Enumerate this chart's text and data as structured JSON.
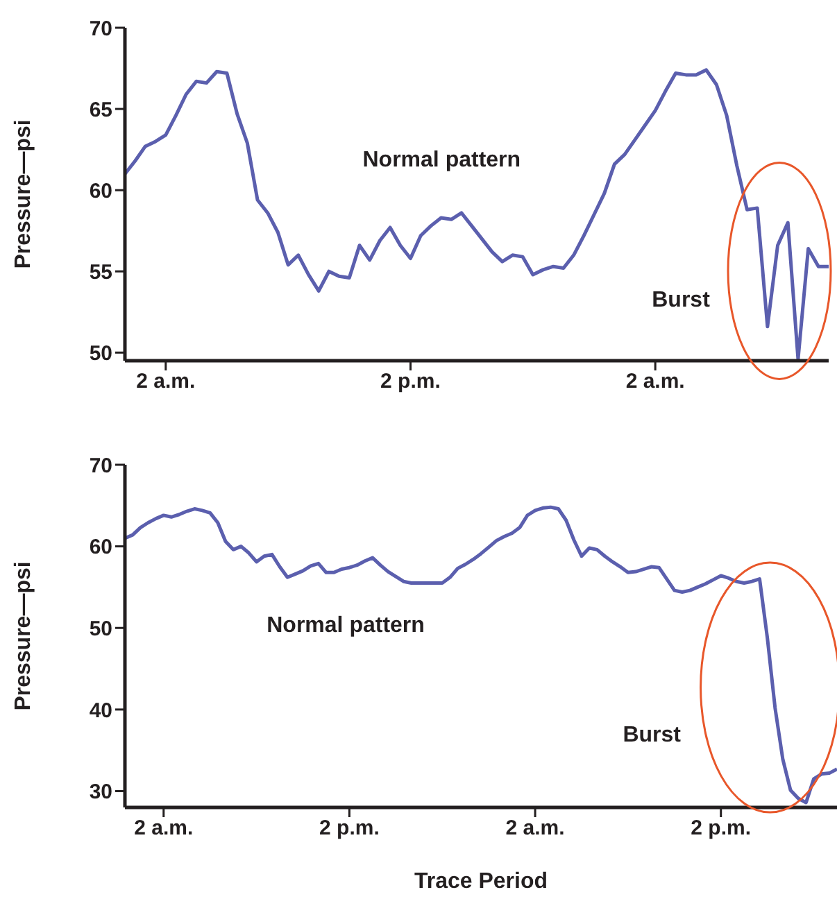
{
  "chart_data": [
    {
      "type": "line",
      "ylabel": "Pressure—psi",
      "ylim": [
        49.5,
        70
      ],
      "yticks": [
        50,
        55,
        60,
        65,
        70
      ],
      "marker": "none",
      "line_style": "solid",
      "categories": [
        null,
        null,
        null,
        null,
        "2 a.m.",
        null,
        null,
        null,
        null,
        null,
        null,
        null,
        null,
        null,
        null,
        null,
        null,
        null,
        null,
        null,
        null,
        null,
        null,
        null,
        null,
        null,
        null,
        null,
        "2 p.m.",
        null,
        null,
        null,
        null,
        null,
        null,
        null,
        null,
        null,
        null,
        null,
        null,
        null,
        null,
        null,
        null,
        null,
        null,
        null,
        null,
        null,
        null,
        null,
        "2 a.m.",
        null,
        null,
        null,
        null,
        null,
        null,
        null,
        null,
        null,
        null,
        null,
        null,
        null,
        null,
        null,
        null,
        null
      ],
      "annotations": [
        "Normal pattern",
        "Burst"
      ],
      "series": [
        {
          "color": "#5b5fae",
          "values": [
            61.0,
            61.8,
            62.7,
            63.0,
            63.4,
            64.6,
            65.9,
            66.7,
            66.6,
            67.3,
            67.2,
            64.7,
            62.9,
            59.4,
            58.6,
            57.4,
            55.4,
            56.0,
            54.8,
            53.8,
            55.0,
            54.7,
            54.6,
            56.6,
            55.7,
            56.9,
            57.7,
            56.6,
            55.8,
            57.2,
            57.8,
            58.3,
            58.2,
            58.6,
            57.8,
            57.0,
            56.2,
            55.6,
            56.0,
            55.9,
            54.8,
            55.1,
            55.3,
            55.2,
            56.0,
            57.2,
            58.5,
            59.8,
            61.6,
            62.2,
            63.1,
            64.0,
            64.9,
            66.1,
            67.2,
            67.1,
            67.1,
            67.4,
            66.5,
            64.6,
            61.5,
            58.8,
            58.9,
            51.6,
            56.6,
            58.0,
            49.6,
            56.4,
            55.3,
            55.3
          ]
        }
      ]
    },
    {
      "type": "line",
      "ylabel": "Pressure—psi",
      "xlabel": "Trace Period",
      "ylim": [
        28,
        70
      ],
      "yticks": [
        30,
        40,
        50,
        60,
        70
      ],
      "marker": "none",
      "line_style": "solid",
      "categories": [
        null,
        null,
        null,
        null,
        null,
        "2 a.m.",
        null,
        null,
        null,
        null,
        null,
        null,
        null,
        null,
        null,
        null,
        null,
        null,
        null,
        null,
        null,
        null,
        null,
        null,
        null,
        null,
        null,
        null,
        null,
        "2 p.m.",
        null,
        null,
        null,
        null,
        null,
        null,
        null,
        null,
        null,
        null,
        null,
        null,
        null,
        null,
        null,
        null,
        null,
        null,
        null,
        null,
        null,
        null,
        null,
        "2 a.m.",
        null,
        null,
        null,
        null,
        null,
        null,
        null,
        null,
        null,
        null,
        null,
        null,
        null,
        null,
        null,
        null,
        null,
        null,
        null,
        null,
        null,
        null,
        null,
        "2 p.m.",
        null,
        null,
        null,
        null,
        null,
        null,
        null,
        null,
        null,
        null,
        null,
        null,
        null,
        null,
        null
      ],
      "annotations": [
        "Normal pattern",
        "Burst"
      ],
      "series": [
        {
          "color": "#5b5fae",
          "values": [
            61.0,
            61.4,
            62.3,
            62.9,
            63.4,
            63.8,
            63.6,
            63.9,
            64.3,
            64.6,
            64.4,
            64.1,
            62.9,
            60.6,
            59.6,
            60.0,
            59.2,
            58.1,
            58.8,
            59.0,
            57.5,
            56.2,
            56.6,
            57.0,
            57.6,
            57.9,
            56.8,
            56.8,
            57.2,
            57.4,
            57.7,
            58.2,
            58.6,
            57.7,
            56.9,
            56.3,
            55.7,
            55.5,
            55.5,
            55.5,
            55.5,
            55.5,
            56.2,
            57.3,
            57.8,
            58.4,
            59.1,
            59.9,
            60.7,
            61.2,
            61.6,
            62.3,
            63.8,
            64.4,
            64.7,
            64.8,
            64.6,
            63.2,
            60.8,
            58.8,
            59.8,
            59.6,
            58.8,
            58.1,
            57.5,
            56.8,
            56.9,
            57.2,
            57.5,
            57.4,
            56.0,
            54.6,
            54.4,
            54.6,
            55.0,
            55.4,
            55.9,
            56.4,
            56.1,
            55.7,
            55.5,
            55.7,
            56.0,
            48.8,
            40.2,
            33.9,
            30.1,
            29.1,
            28.6,
            31.5,
            32.1,
            32.2,
            32.7
          ]
        }
      ]
    }
  ]
}
